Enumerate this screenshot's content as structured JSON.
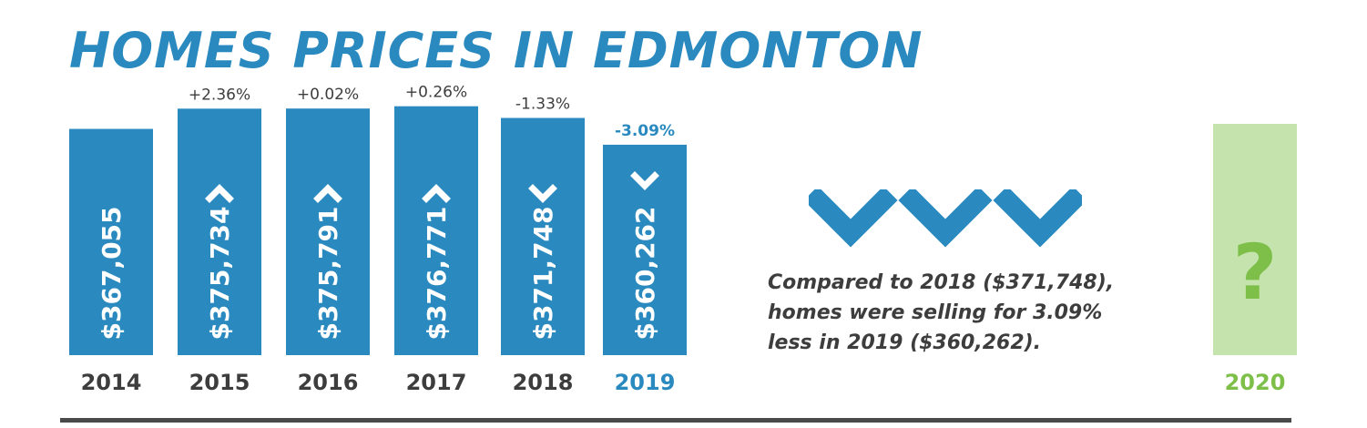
{
  "title": "HOMES PRICES IN EDMONTON",
  "summary_lines": [
    "Compared to 2018 ($371,748),",
    "homes were selling for 3.09%",
    "less in 2019 ($360,262)."
  ],
  "colors": {
    "bar": "#2a8abf",
    "highlight_label": "#2a8abf",
    "future_bar": "#c5e3ad",
    "future_label": "#7dbf48",
    "question_mark": "#7dbf48",
    "text": "#3d3d3d"
  },
  "icons": [
    "chevron-up-icon",
    "chevron-down-icon",
    "question-mark-icon"
  ],
  "chart_data": {
    "type": "bar",
    "categories": [
      "2014",
      "2015",
      "2016",
      "2017",
      "2018",
      "2019",
      "2020"
    ],
    "values": [
      367055,
      375734,
      375791,
      376771,
      371748,
      360262,
      null
    ],
    "value_labels": [
      "$367,055",
      "$375,734",
      "$375,791",
      "$376,771",
      "$371,748",
      "$360,262",
      ""
    ],
    "change_labels": [
      "",
      "+2.36%",
      "+0.02%",
      "+0.26%",
      "-1.33%",
      "-3.09%",
      ""
    ],
    "directions": [
      "",
      "up",
      "up",
      "up",
      "down",
      "down",
      ""
    ],
    "highlight": "2019",
    "future_category": "2020",
    "future_symbol": "?",
    "title": "HOMES PRICES IN EDMONTON",
    "xlabel": "",
    "ylabel": "",
    "grid": false,
    "legend": "none"
  }
}
